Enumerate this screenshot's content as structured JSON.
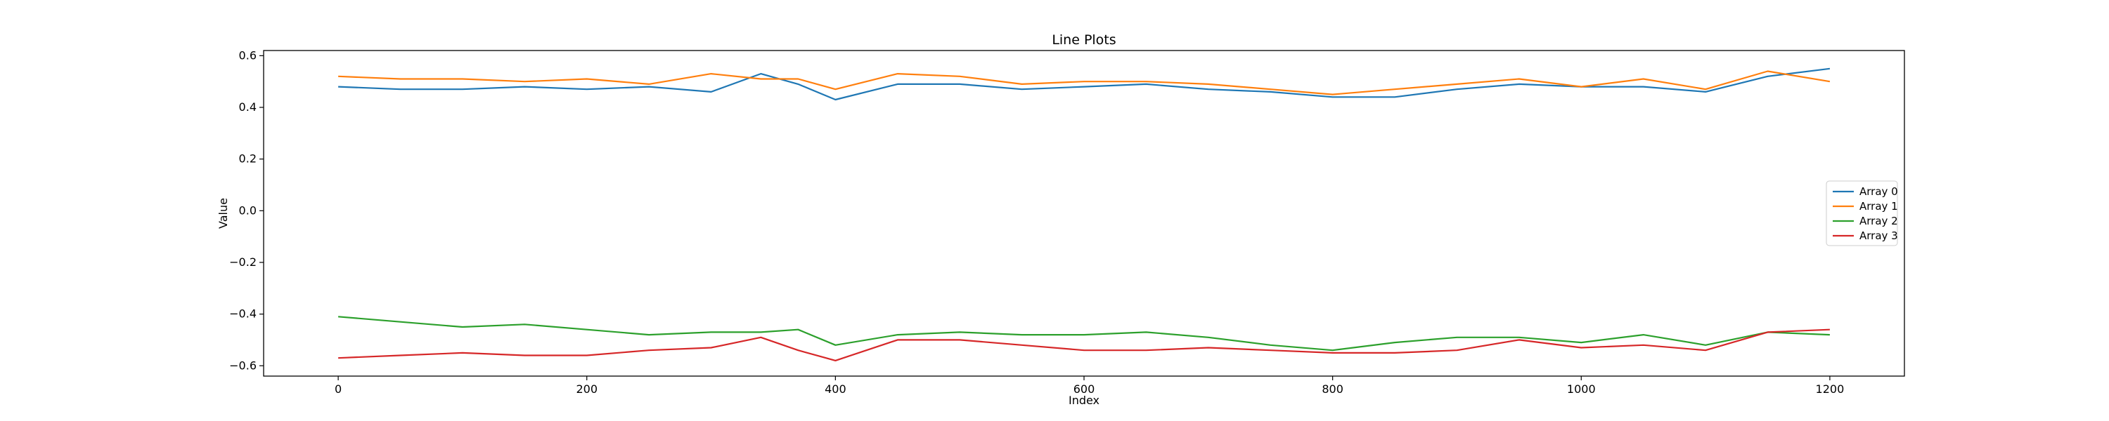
{
  "chart_data": {
    "type": "line",
    "title": "Line Plots",
    "xlabel": "Index",
    "ylabel": "Value",
    "xlim": [
      -60,
      1260
    ],
    "ylim": [
      -0.64,
      0.62
    ],
    "xticks": [
      0,
      200,
      400,
      600,
      800,
      1000,
      1200
    ],
    "xtick_labels": [
      "0",
      "200",
      "400",
      "600",
      "800",
      "1000",
      "1200"
    ],
    "yticks": [
      -0.6,
      -0.4,
      -0.2,
      0.0,
      0.2,
      0.4,
      0.6
    ],
    "ytick_labels": [
      "−0.6",
      "−0.4",
      "−0.2",
      "0.0",
      "0.2",
      "0.4",
      "0.6"
    ],
    "grid": false,
    "legend_position": "center-right",
    "x": [
      0,
      50,
      100,
      150,
      200,
      250,
      300,
      340,
      370,
      400,
      450,
      500,
      550,
      600,
      650,
      700,
      750,
      800,
      850,
      900,
      950,
      1000,
      1050,
      1100,
      1150,
      1200
    ],
    "series": [
      {
        "name": "Array 0",
        "color": "#1f77b4",
        "values": [
          0.48,
          0.47,
          0.47,
          0.48,
          0.47,
          0.48,
          0.46,
          0.53,
          0.49,
          0.43,
          0.49,
          0.49,
          0.47,
          0.48,
          0.49,
          0.47,
          0.46,
          0.44,
          0.44,
          0.47,
          0.49,
          0.48,
          0.48,
          0.46,
          0.52,
          0.55
        ]
      },
      {
        "name": "Array 1",
        "color": "#ff7f0e",
        "values": [
          0.52,
          0.51,
          0.51,
          0.5,
          0.51,
          0.49,
          0.53,
          0.51,
          0.51,
          0.47,
          0.53,
          0.52,
          0.49,
          0.5,
          0.5,
          0.49,
          0.47,
          0.45,
          0.47,
          0.49,
          0.51,
          0.48,
          0.51,
          0.47,
          0.54,
          0.5
        ]
      },
      {
        "name": "Array 2",
        "color": "#2ca02c",
        "values": [
          -0.41,
          -0.43,
          -0.45,
          -0.44,
          -0.46,
          -0.48,
          -0.47,
          -0.47,
          -0.46,
          -0.52,
          -0.48,
          -0.47,
          -0.48,
          -0.48,
          -0.47,
          -0.49,
          -0.52,
          -0.54,
          -0.51,
          -0.49,
          -0.49,
          -0.51,
          -0.48,
          -0.52,
          -0.47,
          -0.48
        ]
      },
      {
        "name": "Array 3",
        "color": "#d62728",
        "values": [
          -0.57,
          -0.56,
          -0.55,
          -0.56,
          -0.56,
          -0.54,
          -0.53,
          -0.49,
          -0.54,
          -0.58,
          -0.5,
          -0.5,
          -0.52,
          -0.54,
          -0.54,
          -0.53,
          -0.54,
          -0.55,
          -0.55,
          -0.54,
          -0.5,
          -0.53,
          -0.52,
          -0.54,
          -0.47,
          -0.46
        ]
      }
    ]
  }
}
